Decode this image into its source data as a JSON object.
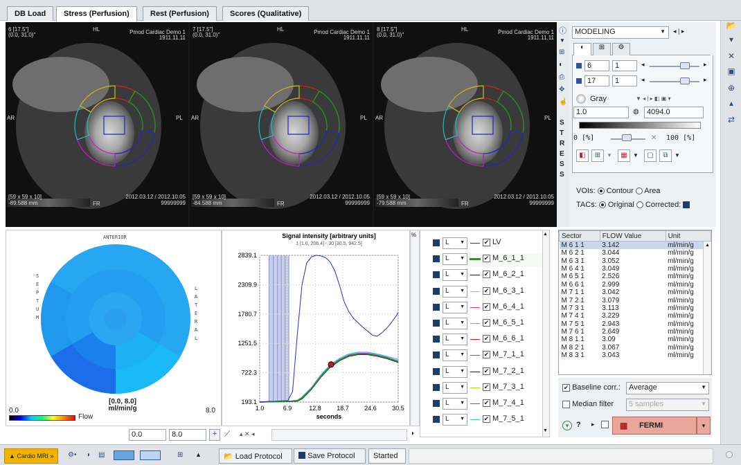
{
  "tabs": [
    "DB Load",
    "Stress (Perfusion)",
    "Rest (Perfusion)",
    "Scores (Qualitative)"
  ],
  "viewports": [
    {
      "slice": "6 [17.5\"]",
      "coord": "(0.0, 31.0)\"",
      "demo": "Pmod Cardiac Demo 1",
      "date": "1911.11.11",
      "dims": "[59 x 59 x 10]",
      "pos": "-89.588 mm",
      "dates": "2012.03.12 / 2012.10.05",
      "id": "99999999"
    },
    {
      "slice": "7 [17.5\"]",
      "coord": "(0.0, 31.0)\"",
      "demo": "Pmod Cardiac Demo 1",
      "date": "1911.11.11",
      "dims": "[59 x 59 x 10]",
      "pos": "-84.588 mm",
      "dates": "2012.03.12 / 2012.10.05",
      "id": "99999999"
    },
    {
      "slice": "8 [17.5\"]",
      "coord": "(0.0, 31.0)\"",
      "demo": "Pmod Cardiac Demo 1",
      "date": "1911.11.11",
      "dims": "[59 x 59 x 10]",
      "pos": "-79.588 mm",
      "dates": "2012.03.12 / 2012.10.05",
      "id": "99999999"
    }
  ],
  "orient": {
    "top": "HL",
    "left": "AR",
    "right": "PL",
    "bottom": "FR"
  },
  "stress_letters": [
    "S",
    "T",
    "R",
    "E",
    "S",
    "S"
  ],
  "control": {
    "mode": "MODELING",
    "slice_a": "6",
    "slice_a2": "1",
    "slice_b": "17",
    "slice_b2": "1",
    "colormap": "Gray",
    "min": "1.0",
    "max": "4094.0",
    "range_lo": "0 [%]",
    "range_hi": "100 [%]",
    "vois_label": "VOIs:",
    "vois_contour": "Contour",
    "vois_area": "Area",
    "tacs_label": "TACs:",
    "tacs_original": "Original",
    "tacs_corrected": "Corrected:"
  },
  "bullseye": {
    "anterior": "ANTERIOR",
    "septum": "SEPTUM",
    "lateral": "LATERAL",
    "range": "[0.0, 8.0]",
    "unit": "ml/min/g",
    "min": "0.0",
    "max": "8.0",
    "legend": "Flow",
    "lo_input": "0.0",
    "hi_input": "8.0"
  },
  "chart_data": {
    "type": "line",
    "title": "Signal intensity [arbitrary units]",
    "subtitle": "1 [1.0, 206.4] - 30 [30.5, 942.5]",
    "xlabel": "seconds",
    "x_ticks": [
      "1.0",
      "6.9",
      "12.8",
      "18.7",
      "24.6",
      "30.5"
    ],
    "y_ticks": [
      "193.1",
      "722.3",
      "1251.5",
      "1780.7",
      "2309.9",
      "2839.1"
    ],
    "xlim": [
      1.0,
      30.5
    ],
    "ylim": [
      193.1,
      2839.1
    ],
    "series": [
      {
        "name": "LV",
        "color": "#2b2bd0",
        "x": [
          1,
          2,
          3,
          4,
          5,
          6,
          7,
          8,
          9,
          10,
          11,
          12,
          13,
          14,
          15,
          16,
          17,
          18,
          19,
          20,
          21,
          22,
          23,
          24,
          25,
          26,
          27,
          28,
          29,
          30,
          30.5
        ],
        "y": [
          193,
          200,
          205,
          205,
          210,
          215,
          220,
          380,
          1400,
          2300,
          2700,
          2810,
          2840,
          2830,
          2800,
          2720,
          2560,
          2300,
          2000,
          1820,
          1700,
          1620,
          1540,
          1470,
          1400,
          1380,
          1440,
          1520,
          1620,
          1740,
          1800
        ]
      },
      {
        "name": "M_6_1_1",
        "color": "#18a018",
        "x": [
          1,
          4,
          7,
          9,
          10,
          12,
          14,
          16,
          18,
          20,
          22,
          24,
          26,
          28,
          30.5
        ],
        "y": [
          193,
          200,
          205,
          215,
          260,
          430,
          650,
          830,
          950,
          1030,
          1060,
          1060,
          1030,
          990,
          920
        ]
      },
      {
        "name": "M_6_2_1",
        "color": "#1a1a1a",
        "x": [
          1,
          4,
          7,
          9,
          10,
          12,
          14,
          16,
          18,
          20,
          22,
          24,
          26,
          28,
          30.5
        ],
        "y": [
          193,
          198,
          202,
          210,
          250,
          420,
          640,
          820,
          940,
          1020,
          1050,
          1050,
          1020,
          980,
          910
        ]
      },
      {
        "name": "M_6_3_1",
        "color": "#e0c000",
        "x": [
          1,
          4,
          7,
          9,
          10,
          12,
          14,
          16,
          18,
          20,
          22,
          24,
          26,
          28,
          30.5
        ],
        "y": [
          193,
          198,
          203,
          212,
          255,
          425,
          645,
          825,
          945,
          1025,
          1055,
          1050,
          1025,
          985,
          915
        ]
      },
      {
        "name": "M_6_4_1",
        "color": "#c030c0",
        "x": [
          1,
          4,
          7,
          9,
          10,
          12,
          14,
          16,
          18,
          20,
          22,
          24,
          26,
          28,
          30.5
        ],
        "y": [
          193,
          200,
          205,
          220,
          270,
          440,
          660,
          840,
          960,
          1040,
          1070,
          1070,
          1040,
          1000,
          930
        ]
      },
      {
        "name": "M_6_5_1",
        "color": "#30c8d8",
        "x": [
          1,
          4,
          7,
          9,
          10,
          12,
          14,
          16,
          18,
          20,
          22,
          24,
          26,
          28,
          30.5
        ],
        "y": [
          193,
          200,
          206,
          225,
          280,
          450,
          680,
          860,
          980,
          1060,
          1090,
          1090,
          1060,
          1020,
          960
        ]
      },
      {
        "name": "M_6_6_1",
        "color": "#d02020",
        "x": [
          1,
          4,
          7,
          9,
          10,
          12,
          14,
          16,
          18,
          20,
          22,
          24,
          26,
          28,
          30.5
        ],
        "y": [
          193,
          198,
          203,
          212,
          258,
          428,
          648,
          828,
          948,
          1028,
          1058,
          1055,
          1028,
          988,
          918
        ]
      }
    ],
    "marker": {
      "x": 16.2,
      "y": 870
    }
  },
  "legend_rows": [
    {
      "label": "LV",
      "color": "#2b2bd0"
    },
    {
      "label": "M_6_1_1",
      "color": "#18a018"
    },
    {
      "label": "M_6_2_1",
      "color": "#1a1a1a"
    },
    {
      "label": "M_6_3_1",
      "color": "#e0c000"
    },
    {
      "label": "M_6_4_1",
      "color": "#c030c0"
    },
    {
      "label": "M_6_5_1",
      "color": "#30c8d8"
    },
    {
      "label": "M_6_6_1",
      "color": "#d02020"
    },
    {
      "label": "M_7_1_1",
      "color": "#18a018"
    },
    {
      "label": "M_7_2_1",
      "color": "#1a1a1a"
    },
    {
      "label": "M_7_3_1",
      "color": "#e0c000"
    },
    {
      "label": "M_7_4_1",
      "color": "#c030c0"
    },
    {
      "label": "M_7_5_1",
      "color": "#30c8d8"
    }
  ],
  "legend_dd": "L",
  "table": {
    "headers": [
      "Sector",
      "FLOW Value",
      "Unit"
    ],
    "rows": [
      [
        "M 6 1 1",
        "3.142",
        "ml/min/g"
      ],
      [
        "M 6 2 1",
        "3.044",
        "ml/min/g"
      ],
      [
        "M 6 3 1",
        "3.052",
        "ml/min/g"
      ],
      [
        "M 6 4 1",
        "3.049",
        "ml/min/g"
      ],
      [
        "M 6 5 1",
        "2.526",
        "ml/min/g"
      ],
      [
        "M 6 6 1",
        "2.999",
        "ml/min/g"
      ],
      [
        "M 7 1 1",
        "3.042",
        "ml/min/g"
      ],
      [
        "M 7 2 1",
        "3.079",
        "ml/min/g"
      ],
      [
        "M 7 3 1",
        "3.113",
        "ml/min/g"
      ],
      [
        "M 7 4 1",
        "3.229",
        "ml/min/g"
      ],
      [
        "M 7 5 1",
        "2.943",
        "ml/min/g"
      ],
      [
        "M 7 6 1",
        "2.649",
        "ml/min/g"
      ],
      [
        "M 8 1 1",
        "3.09",
        "ml/min/g"
      ],
      [
        "M 8 2 1",
        "3.067",
        "ml/min/g"
      ],
      [
        "M 8 3 1",
        "3.043",
        "ml/min/g"
      ]
    ]
  },
  "options": {
    "baseline": "Baseline corr.:",
    "baseline_val": "Average",
    "median": "Median filter",
    "median_val": "5 samples",
    "model": "FERMI",
    "q": "?"
  },
  "bottom": {
    "cardiac": "Cardio MRI",
    "load": "Load Protocol",
    "save": "Save Protocol",
    "status": "Started"
  }
}
